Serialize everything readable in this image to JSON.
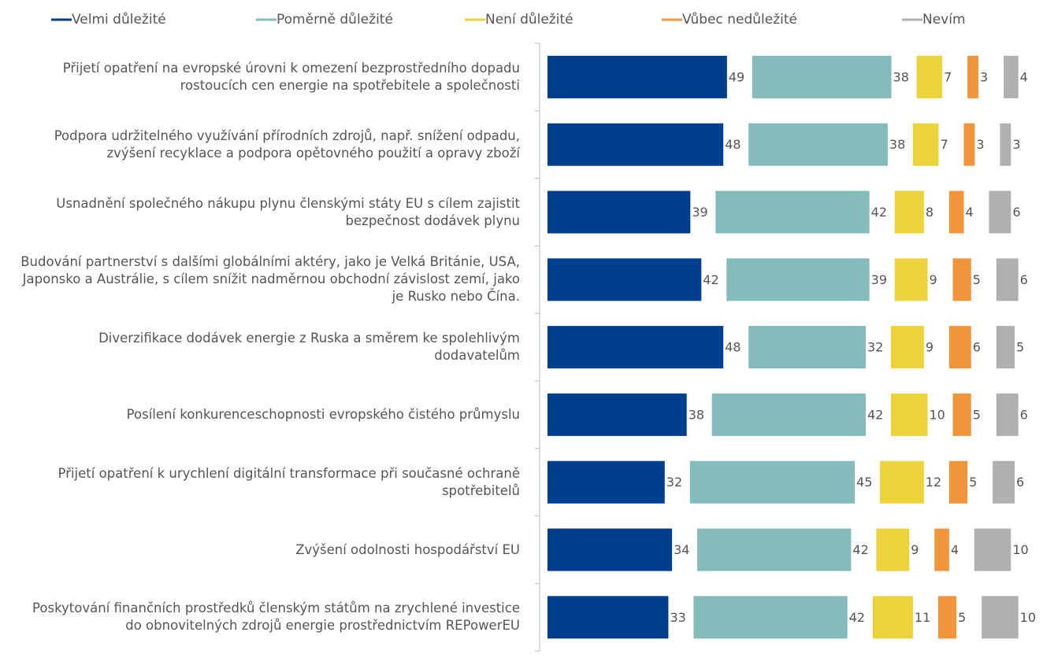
{
  "chart_data": {
    "type": "bar",
    "orientation": "horizontal",
    "categories": [
      "Přijetí opatření na evropské úrovni k omezení bezprostředního dopadu rostoucích cen energie na spotřebitele a společnosti",
      "Podpora udržitelného využívání přírodních zdrojů, např. snížení odpadu, zvýšení recyklace a podpora opětovného použití a opravy zboží",
      "Usnadnění společného nákupu plynu členskými státy EU s cílem zajistit bezpečnost dodávek plynu",
      "Budování partnerství s dalšími globálními aktéry, jako je Velká Británie, USA, Japonsko a Austrálie, s cílem snížit nadměrnou obchodní závislost zemí, jako je Rusko nebo Čína.",
      "Diverzifikace dodávek energie z Ruska a směrem ke spolehlivým dodavatelům",
      "Posílení konkurenceschopnosti evropského čistého průmyslu",
      "Přijetí opatření k urychlení digitální transformace při současné ochraně spotřebitelů",
      "Zvýšení odolnosti hospodářství EU",
      "Poskytování finančních prostředků členským státům na zrychlené investice do obnovitelných zdrojů energie prostřednictvím REPowerEU"
    ],
    "series": [
      {
        "name": "Velmi důležité",
        "color": "#003f8f",
        "values": [
          49,
          48,
          39,
          42,
          48,
          38,
          32,
          34,
          33
        ]
      },
      {
        "name": "Poměrně důležité",
        "color": "#83bcbb",
        "values": [
          38,
          38,
          42,
          39,
          32,
          42,
          45,
          42,
          42
        ]
      },
      {
        "name": "Není důležité",
        "color": "#ecd23b",
        "values": [
          7,
          7,
          8,
          9,
          9,
          10,
          12,
          9,
          11
        ]
      },
      {
        "name": "Vůbec nedůležité",
        "color": "#f0953a",
        "values": [
          3,
          3,
          4,
          5,
          6,
          5,
          5,
          4,
          5
        ]
      },
      {
        "name": "Nevím",
        "color": "#b0b0b0",
        "values": [
          4,
          3,
          6,
          6,
          5,
          6,
          6,
          10,
          10
        ]
      }
    ],
    "legend": "top"
  }
}
